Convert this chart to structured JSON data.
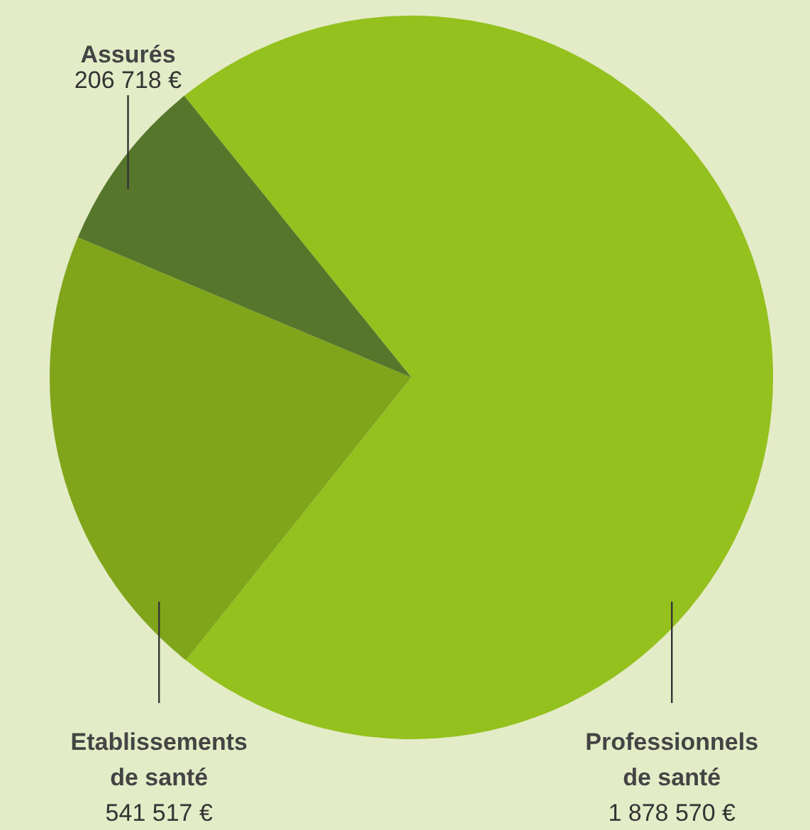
{
  "chart_data": {
    "type": "pie",
    "categories": [
      "Professionnels de santé",
      "Etablissements de santé",
      "Assurés"
    ],
    "values": [
      1878570,
      541517,
      206718
    ],
    "colors": [
      "#95c11f",
      "#80a51b",
      "#56772b"
    ],
    "value_labels": [
      "1 878 570 €",
      "541 517 €",
      "206 718 €"
    ]
  }
}
